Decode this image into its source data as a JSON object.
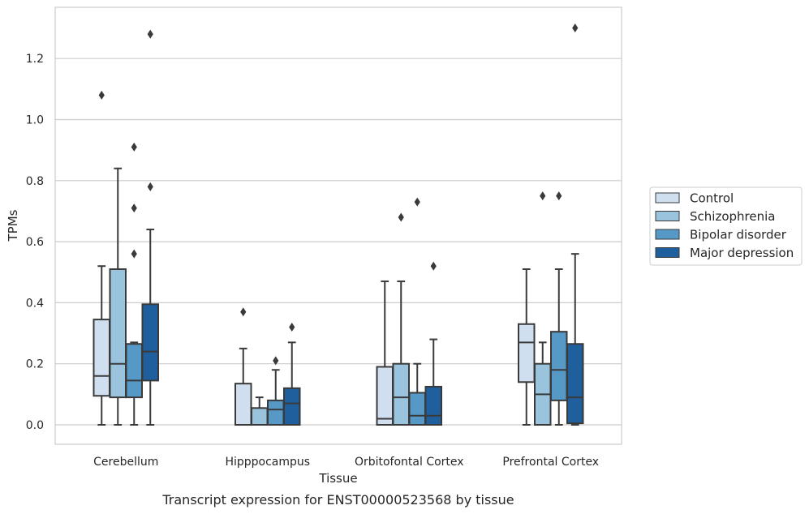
{
  "chart_data": {
    "type": "box",
    "title": "",
    "caption": "Transcript expression for ENST00000523568 by tissue",
    "xlabel": "Tissue",
    "ylabel": "TPMs",
    "ylim": [
      -0.065,
      1.37
    ],
    "yticks": [
      "0.0",
      "0.2",
      "0.4",
      "0.6",
      "0.8",
      "1.0",
      "1.2"
    ],
    "grid": "horizontal",
    "legend_position": "right",
    "categories": [
      "Cerebellum",
      "Hipppocampus",
      "Orbitofontal Cortex",
      "Prefrontal Cortex"
    ],
    "series": [
      {
        "name": "Control",
        "color": "#d0dff0",
        "boxes": [
          {
            "whislo": 0.0,
            "q1": 0.095,
            "med": 0.16,
            "q3": 0.345,
            "whishi": 0.52,
            "fliers": [
              1.08
            ]
          },
          {
            "whislo": 0.0,
            "q1": 0.0,
            "med": 0.0,
            "q3": 0.135,
            "whishi": 0.25,
            "fliers": [
              0.37
            ]
          },
          {
            "whislo": 0.0,
            "q1": 0.0,
            "med": 0.02,
            "q3": 0.19,
            "whishi": 0.47,
            "fliers": []
          },
          {
            "whislo": 0.0,
            "q1": 0.14,
            "med": 0.27,
            "q3": 0.33,
            "whishi": 0.51,
            "fliers": []
          }
        ]
      },
      {
        "name": "Schizophrenia",
        "color": "#9ac4de",
        "boxes": [
          {
            "whislo": 0.0,
            "q1": 0.09,
            "med": 0.2,
            "q3": 0.51,
            "whishi": 0.84,
            "fliers": []
          },
          {
            "whislo": 0.0,
            "q1": 0.0,
            "med": 0.0,
            "q3": 0.055,
            "whishi": 0.09,
            "fliers": []
          },
          {
            "whislo": 0.0,
            "q1": 0.0,
            "med": 0.09,
            "q3": 0.2,
            "whishi": 0.47,
            "fliers": [
              0.68
            ]
          },
          {
            "whislo": 0.0,
            "q1": 0.0,
            "med": 0.1,
            "q3": 0.2,
            "whishi": 0.27,
            "fliers": [
              0.75
            ]
          }
        ]
      },
      {
        "name": "Bipolar disorder",
        "color": "#5699c6",
        "boxes": [
          {
            "whislo": 0.0,
            "q1": 0.09,
            "med": 0.145,
            "q3": 0.265,
            "whishi": 0.27,
            "fliers": [
              0.56,
              0.71,
              0.91
            ]
          },
          {
            "whislo": 0.0,
            "q1": 0.0,
            "med": 0.05,
            "q3": 0.08,
            "whishi": 0.18,
            "fliers": [
              0.21
            ]
          },
          {
            "whislo": 0.0,
            "q1": 0.0,
            "med": 0.03,
            "q3": 0.105,
            "whishi": 0.2,
            "fliers": [
              0.73
            ]
          },
          {
            "whislo": 0.0,
            "q1": 0.08,
            "med": 0.18,
            "q3": 0.305,
            "whishi": 0.51,
            "fliers": [
              0.75
            ]
          }
        ]
      },
      {
        "name": "Major depression",
        "color": "#1f5f9e",
        "boxes": [
          {
            "whislo": 0.0,
            "q1": 0.145,
            "med": 0.24,
            "q3": 0.395,
            "whishi": 0.64,
            "fliers": [
              0.78,
              1.28
            ]
          },
          {
            "whislo": 0.0,
            "q1": 0.0,
            "med": 0.07,
            "q3": 0.12,
            "whishi": 0.27,
            "fliers": [
              0.32
            ]
          },
          {
            "whislo": 0.0,
            "q1": 0.0,
            "med": 0.03,
            "q3": 0.125,
            "whishi": 0.28,
            "fliers": [
              0.52
            ]
          },
          {
            "whislo": 0.0,
            "q1": 0.005,
            "med": 0.09,
            "q3": 0.265,
            "whishi": 0.56,
            "fliers": [
              1.3
            ]
          }
        ]
      }
    ]
  }
}
